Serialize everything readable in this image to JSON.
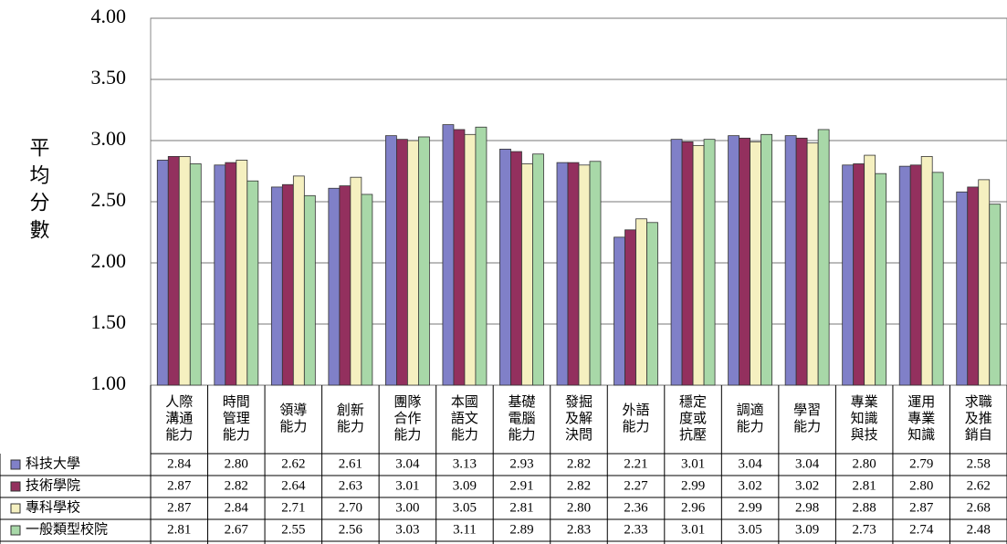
{
  "chart_data": {
    "type": "bar",
    "y_label": "平均分數",
    "categories": [
      [
        "人際",
        "溝通",
        "能力"
      ],
      [
        "時間",
        "管理",
        "能力"
      ],
      [
        "領導",
        "能力"
      ],
      [
        "創新",
        "能力"
      ],
      [
        "團隊",
        "合作",
        "能力"
      ],
      [
        "本國",
        "語文",
        "能力"
      ],
      [
        "基礎",
        "電腦",
        "能力"
      ],
      [
        "發掘",
        "及解",
        "決問"
      ],
      [
        "外語",
        "能力"
      ],
      [
        "穩定",
        "度或",
        "抗壓"
      ],
      [
        "調適",
        "能力"
      ],
      [
        "學習",
        "能力"
      ],
      [
        "專業",
        "知識",
        "與技"
      ],
      [
        "運用",
        "專業",
        "知識"
      ],
      [
        "求職",
        "及推",
        "銷自"
      ]
    ],
    "series": [
      {
        "name": "科技大學",
        "color": "#8080c8",
        "values": [
          2.84,
          2.8,
          2.62,
          2.61,
          3.04,
          3.13,
          2.93,
          2.82,
          2.21,
          3.01,
          3.04,
          3.04,
          2.8,
          2.79,
          2.58
        ],
        "value_labels": [
          "2.84",
          "2.80",
          "2.62",
          "2.61",
          "3.04",
          "3.13",
          "2.93",
          "2.82",
          "2.21",
          "3.01",
          "3.04",
          "3.04",
          "2.80",
          "2.79",
          "2.58"
        ]
      },
      {
        "name": "技術學院",
        "color": "#93305e",
        "values": [
          2.87,
          2.82,
          2.64,
          2.63,
          3.01,
          3.09,
          2.91,
          2.82,
          2.27,
          2.99,
          3.02,
          3.02,
          2.81,
          2.8,
          2.62
        ],
        "value_labels": [
          "2.87",
          "2.82",
          "2.64",
          "2.63",
          "3.01",
          "3.09",
          "2.91",
          "2.82",
          "2.27",
          "2.99",
          "3.02",
          "3.02",
          "2.81",
          "2.80",
          "2.62"
        ]
      },
      {
        "name": "專科學校",
        "color": "#f5f0c0",
        "values": [
          2.87,
          2.84,
          2.71,
          2.7,
          3.0,
          3.05,
          2.81,
          2.8,
          2.36,
          2.96,
          2.99,
          2.98,
          2.88,
          2.87,
          2.68
        ],
        "value_labels": [
          "2.87",
          "2.84",
          "2.71",
          "2.70",
          "3.00",
          "3.05",
          "2.81",
          "2.80",
          "2.36",
          "2.96",
          "2.99",
          "2.98",
          "2.88",
          "2.87",
          "2.68"
        ]
      },
      {
        "name": "一般類型校院",
        "color": "#a8d8a8",
        "values": [
          2.81,
          2.67,
          2.55,
          2.56,
          3.03,
          3.11,
          2.89,
          2.83,
          2.33,
          3.01,
          3.05,
          3.09,
          2.73,
          2.74,
          2.48
        ],
        "value_labels": [
          "2.81",
          "2.67",
          "2.55",
          "2.56",
          "3.03",
          "3.11",
          "2.89",
          "2.83",
          "2.33",
          "3.01",
          "3.05",
          "3.09",
          "2.73",
          "2.74",
          "2.48"
        ]
      }
    ],
    "ylim": [
      1,
      4
    ],
    "yticks": [
      {
        "value": 1,
        "label": "1.00"
      },
      {
        "value": 1.5,
        "label": "1.50"
      },
      {
        "value": 2,
        "label": "2.00"
      },
      {
        "value": 2.5,
        "label": "2.50"
      },
      {
        "value": 3,
        "label": "3.00"
      },
      {
        "value": 3.5,
        "label": "3.50"
      },
      {
        "value": 4,
        "label": "4.00"
      }
    ],
    "grid": true
  }
}
